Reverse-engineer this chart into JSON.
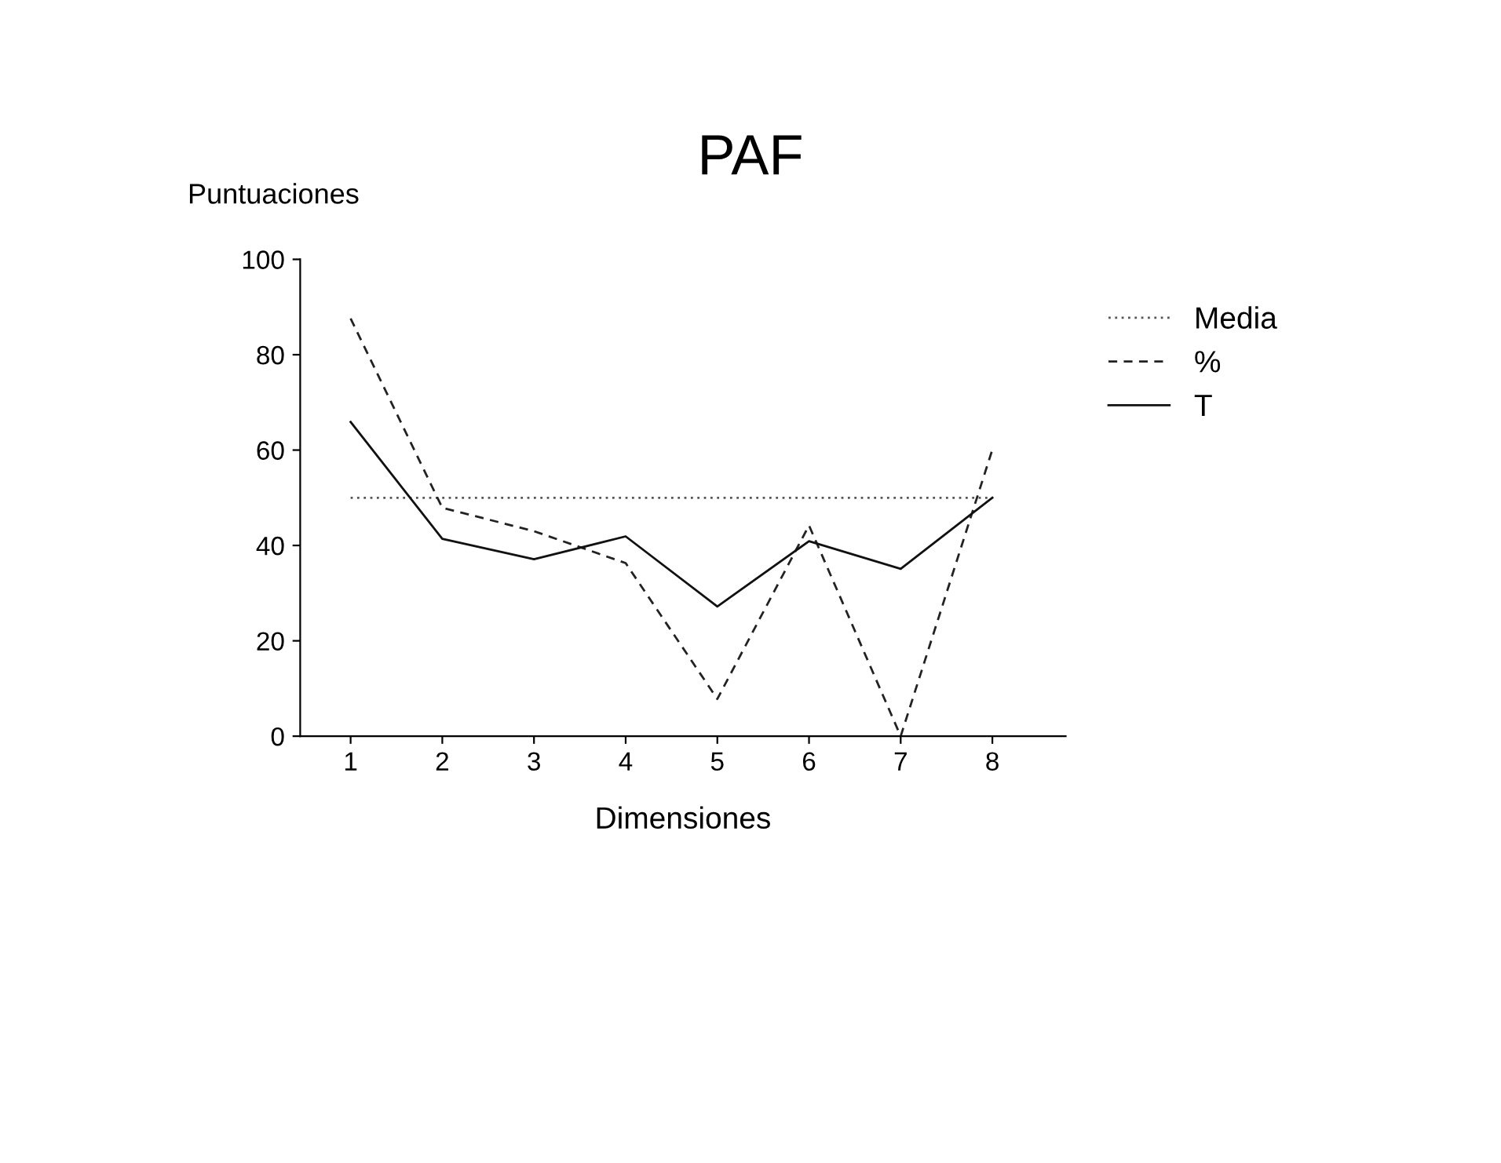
{
  "chart_data": {
    "type": "line",
    "title": "PAF",
    "xlabel": "Dimensiones",
    "ylabel": "Puntuaciones",
    "x": [
      1,
      2,
      3,
      4,
      5,
      6,
      7,
      8
    ],
    "series": [
      {
        "name": "Media",
        "color": "#555555",
        "line_style": "dotted",
        "values": [
          50,
          50,
          50,
          50,
          50,
          50,
          50,
          50
        ]
      },
      {
        "name": "%",
        "color": "#222222",
        "line_style": "dashed",
        "values": [
          87.6,
          47.9,
          43,
          36.3,
          7.8,
          44.2,
          0,
          60.1
        ]
      },
      {
        "name": "T",
        "color": "#111111",
        "line_style": "solid",
        "values": [
          65.9,
          41.4,
          37.1,
          41.9,
          27.2,
          40.9,
          35.1,
          50
        ]
      }
    ],
    "xlim": [
      0.45,
      8.8
    ],
    "xticks": [
      1,
      2,
      3,
      4,
      5,
      6,
      7,
      8
    ],
    "ylim": [
      0,
      100
    ],
    "yticks": [
      0,
      20,
      40,
      60,
      80,
      100
    ],
    "grid": false,
    "legend": "right",
    "marker": "none"
  }
}
